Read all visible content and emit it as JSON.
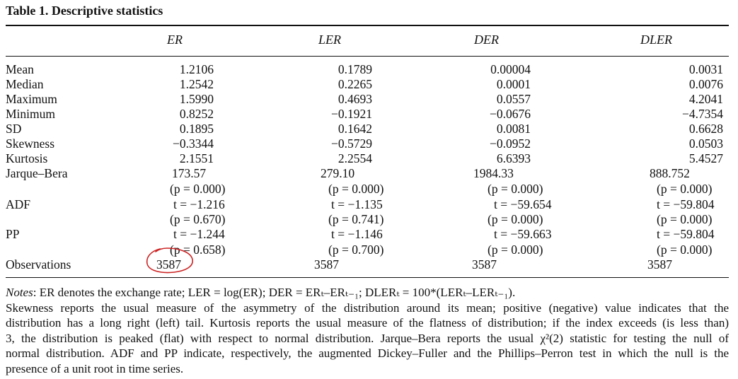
{
  "title": "Table 1.  Descriptive statistics",
  "columns": [
    "ER",
    "LER",
    "DER",
    "DLER"
  ],
  "rows": [
    {
      "label": "Mean",
      "values": [
        "1.2106",
        "0.1789",
        "0.00004",
        "0.0031"
      ]
    },
    {
      "label": "Median",
      "values": [
        "1.2542",
        "0.2265",
        "0.0001",
        "0.0076"
      ]
    },
    {
      "label": "Maximum",
      "values": [
        "1.5990",
        "0.4693",
        "0.0557",
        "4.2041"
      ]
    },
    {
      "label": "Minimum",
      "values": [
        "0.8252",
        "−0.1921",
        "−0.0676",
        "−4.7354"
      ]
    },
    {
      "label": "SD",
      "values": [
        "0.1895",
        "0.1642",
        "0.0081",
        "0.6628"
      ]
    },
    {
      "label": "Skewness",
      "values": [
        "−0.3344",
        "−0.5729",
        "−0.0952",
        "0.0503"
      ]
    },
    {
      "label": "Kurtosis",
      "values": [
        "2.1551",
        "2.2554",
        "6.6393",
        "5.4527"
      ]
    }
  ],
  "jarque_bera": {
    "label": "Jarque–Bera",
    "stats": [
      "173.57",
      "279.10",
      "1984.33",
      "888.752"
    ],
    "pvals": [
      "(p = 0.000)",
      "(p = 0.000)",
      "(p = 0.000)",
      "(p = 0.000)"
    ]
  },
  "adf": {
    "label": "ADF",
    "stats": [
      "t = −1.216",
      "t = −1.135",
      "t = −59.654",
      "t = −59.804"
    ],
    "pvals": [
      "(p = 0.670)",
      "(p = 0.741)",
      "(p = 0.000)",
      "(p = 0.000)"
    ]
  },
  "pp": {
    "label": "PP",
    "stats": [
      "t = −1.244",
      "t = −1.146",
      "t = −59.663",
      "t = −59.804"
    ],
    "pvals": [
      "(p = 0.658)",
      "(p = 0.700)",
      "(p = 0.000)",
      "(p = 0.000)"
    ]
  },
  "observations": {
    "label": "Observations",
    "values": [
      "3587",
      "3587",
      "3587",
      "3587"
    ]
  },
  "notes": {
    "line1_prefix": "Notes",
    "line1": ": ER denotes the exchange rate; LER = log(ER); DER = ERₜ–ERₜ₋₁; DLERₜ = 100*(LERₜ–LERₜ₋₁).",
    "para_lines": [
      "Skewness reports the usual measure of the asymmetry of the distribution around its mean; positive (negative) value indicates that the",
      "distribution has a long right (left) tail. Kurtosis reports the usual measure of the flatness of distribution; if the index exceeds (is less than)",
      "3, the distribution is peaked (flat) with respect to normal distribution. Jarque–Bera reports the usual χ²(2) statistic for testing the null of",
      "normal distribution. ADF and PP indicate, respectively, the augmented Dickey–Fuller and the Phillips–Perron test in which the null is the",
      "presence of a unit root in time series."
    ]
  },
  "annotation_color": "#cc2222"
}
